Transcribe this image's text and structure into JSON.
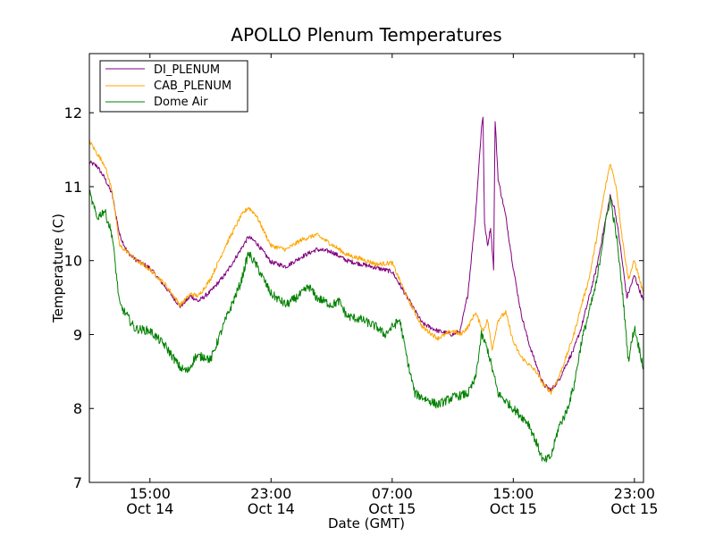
{
  "chart_data": {
    "type": "line",
    "title": "APOLLO Plenum Temperatures",
    "xlabel": "Date (GMT)",
    "ylabel": "Temperature (C)",
    "x_unit": "hours since Oct 14 00:00 GMT",
    "xlim": [
      11.0,
      47.6
    ],
    "ylim": [
      7,
      12.8
    ],
    "grid": false,
    "legend_position": "top-left",
    "x_ticks": [
      {
        "value": 15,
        "line1": "15:00",
        "line2": "Oct 14"
      },
      {
        "value": 23,
        "line1": "23:00",
        "line2": "Oct 14"
      },
      {
        "value": 31,
        "line1": "07:00",
        "line2": "Oct 15"
      },
      {
        "value": 39,
        "line1": "15:00",
        "line2": "Oct 15"
      },
      {
        "value": 47,
        "line1": "23:00",
        "line2": "Oct 15"
      }
    ],
    "y_ticks": [
      {
        "value": 7,
        "label": "7"
      },
      {
        "value": 8,
        "label": "8"
      },
      {
        "value": 9,
        "label": "9"
      },
      {
        "value": 10,
        "label": "10"
      },
      {
        "value": 11,
        "label": "11"
      },
      {
        "value": 12,
        "label": "12"
      }
    ],
    "series": [
      {
        "name": "DI_PLENUM",
        "color": "#800080",
        "noise": 0.03,
        "points": [
          [
            11.0,
            11.33
          ],
          [
            11.5,
            11.28
          ],
          [
            12.0,
            11.12
          ],
          [
            12.5,
            10.9
          ],
          [
            13.0,
            10.35
          ],
          [
            13.5,
            10.12
          ],
          [
            14.0,
            10.02
          ],
          [
            15.0,
            9.9
          ],
          [
            16.0,
            9.65
          ],
          [
            17.0,
            9.38
          ],
          [
            17.7,
            9.52
          ],
          [
            18.2,
            9.45
          ],
          [
            19.0,
            9.58
          ],
          [
            20.0,
            9.82
          ],
          [
            21.0,
            10.15
          ],
          [
            21.5,
            10.32
          ],
          [
            22.0,
            10.25
          ],
          [
            23.0,
            9.98
          ],
          [
            24.0,
            9.92
          ],
          [
            25.0,
            10.05
          ],
          [
            26.0,
            10.15
          ],
          [
            27.0,
            10.12
          ],
          [
            28.0,
            10.0
          ],
          [
            29.0,
            9.95
          ],
          [
            30.0,
            9.9
          ],
          [
            31.0,
            9.85
          ],
          [
            32.0,
            9.5
          ],
          [
            33.0,
            9.15
          ],
          [
            34.0,
            9.05
          ],
          [
            35.0,
            9.0
          ],
          [
            35.5,
            9.05
          ],
          [
            36.0,
            9.55
          ],
          [
            36.5,
            10.6
          ],
          [
            36.9,
            11.8
          ],
          [
            37.0,
            11.95
          ],
          [
            37.1,
            10.5
          ],
          [
            37.3,
            10.2
          ],
          [
            37.5,
            10.45
          ],
          [
            37.7,
            9.9
          ],
          [
            37.8,
            11.9
          ],
          [
            38.0,
            11.1
          ],
          [
            38.5,
            10.6
          ],
          [
            39.0,
            9.9
          ],
          [
            39.5,
            9.3
          ],
          [
            40.0,
            8.9
          ],
          [
            40.5,
            8.6
          ],
          [
            41.0,
            8.32
          ],
          [
            41.5,
            8.25
          ],
          [
            42.0,
            8.38
          ],
          [
            42.5,
            8.6
          ],
          [
            43.0,
            8.8
          ],
          [
            43.5,
            9.1
          ],
          [
            44.0,
            9.5
          ],
          [
            44.5,
            9.9
          ],
          [
            45.0,
            10.45
          ],
          [
            45.4,
            10.87
          ],
          [
            45.7,
            10.7
          ],
          [
            46.0,
            10.3
          ],
          [
            46.5,
            9.5
          ],
          [
            47.0,
            9.8
          ],
          [
            47.6,
            9.45
          ]
        ]
      },
      {
        "name": "CAB_PLENUM",
        "color": "#ffa500",
        "noise": 0.03,
        "points": [
          [
            11.0,
            11.62
          ],
          [
            11.5,
            11.45
          ],
          [
            12.0,
            11.3
          ],
          [
            12.5,
            10.95
          ],
          [
            13.0,
            10.2
          ],
          [
            13.5,
            10.12
          ],
          [
            14.0,
            10.02
          ],
          [
            15.0,
            9.88
          ],
          [
            16.0,
            9.68
          ],
          [
            17.0,
            9.4
          ],
          [
            17.7,
            9.55
          ],
          [
            18.2,
            9.52
          ],
          [
            19.0,
            9.75
          ],
          [
            20.0,
            10.2
          ],
          [
            21.0,
            10.6
          ],
          [
            21.5,
            10.72
          ],
          [
            22.0,
            10.62
          ],
          [
            23.0,
            10.2
          ],
          [
            24.0,
            10.15
          ],
          [
            25.0,
            10.28
          ],
          [
            26.0,
            10.35
          ],
          [
            27.0,
            10.22
          ],
          [
            28.0,
            10.08
          ],
          [
            29.0,
            10.02
          ],
          [
            30.0,
            9.95
          ],
          [
            31.0,
            9.97
          ],
          [
            32.0,
            9.5
          ],
          [
            33.0,
            9.1
          ],
          [
            34.0,
            8.95
          ],
          [
            35.0,
            9.05
          ],
          [
            35.5,
            9.0
          ],
          [
            36.0,
            9.1
          ],
          [
            36.5,
            9.3
          ],
          [
            37.0,
            9.05
          ],
          [
            37.3,
            9.2
          ],
          [
            37.6,
            8.8
          ],
          [
            38.0,
            9.2
          ],
          [
            38.5,
            9.3
          ],
          [
            39.0,
            8.9
          ],
          [
            39.5,
            8.7
          ],
          [
            40.0,
            8.6
          ],
          [
            40.5,
            8.5
          ],
          [
            41.0,
            8.32
          ],
          [
            41.5,
            8.22
          ],
          [
            42.0,
            8.42
          ],
          [
            42.5,
            8.7
          ],
          [
            43.0,
            9.0
          ],
          [
            43.5,
            9.4
          ],
          [
            44.0,
            9.75
          ],
          [
            44.5,
            10.3
          ],
          [
            45.0,
            10.9
          ],
          [
            45.4,
            11.32
          ],
          [
            45.8,
            11.0
          ],
          [
            46.2,
            10.3
          ],
          [
            46.6,
            9.75
          ],
          [
            47.0,
            10.0
          ],
          [
            47.6,
            9.55
          ]
        ]
      },
      {
        "name": "Dome Air",
        "color": "#008000",
        "noise": 0.06,
        "points": [
          [
            11.0,
            10.92
          ],
          [
            11.5,
            10.58
          ],
          [
            12.0,
            10.68
          ],
          [
            12.5,
            10.35
          ],
          [
            13.0,
            9.4
          ],
          [
            13.5,
            9.25
          ],
          [
            14.0,
            9.08
          ],
          [
            15.0,
            9.05
          ],
          [
            16.0,
            8.85
          ],
          [
            17.0,
            8.55
          ],
          [
            17.5,
            8.5
          ],
          [
            18.0,
            8.7
          ],
          [
            18.7,
            8.7
          ],
          [
            19.0,
            8.65
          ],
          [
            20.0,
            9.2
          ],
          [
            21.0,
            9.7
          ],
          [
            21.5,
            10.1
          ],
          [
            22.0,
            9.95
          ],
          [
            23.0,
            9.55
          ],
          [
            24.0,
            9.4
          ],
          [
            25.0,
            9.55
          ],
          [
            25.5,
            9.65
          ],
          [
            26.0,
            9.5
          ],
          [
            27.0,
            9.4
          ],
          [
            27.5,
            9.45
          ],
          [
            28.0,
            9.25
          ],
          [
            29.0,
            9.2
          ],
          [
            30.0,
            9.1
          ],
          [
            30.5,
            9.0
          ],
          [
            31.0,
            9.1
          ],
          [
            31.5,
            9.2
          ],
          [
            32.0,
            8.65
          ],
          [
            32.5,
            8.2
          ],
          [
            33.0,
            8.15
          ],
          [
            34.0,
            8.05
          ],
          [
            35.0,
            8.15
          ],
          [
            36.0,
            8.2
          ],
          [
            36.5,
            8.4
          ],
          [
            36.9,
            9.0
          ],
          [
            37.3,
            8.8
          ],
          [
            38.0,
            8.2
          ],
          [
            39.0,
            8.0
          ],
          [
            40.0,
            7.8
          ],
          [
            40.5,
            7.55
          ],
          [
            41.0,
            7.28
          ],
          [
            41.5,
            7.35
          ],
          [
            42.0,
            7.75
          ],
          [
            42.5,
            7.95
          ],
          [
            43.0,
            8.3
          ],
          [
            43.5,
            8.9
          ],
          [
            44.0,
            9.3
          ],
          [
            44.5,
            9.7
          ],
          [
            45.0,
            10.4
          ],
          [
            45.4,
            10.85
          ],
          [
            45.8,
            10.35
          ],
          [
            46.2,
            9.6
          ],
          [
            46.6,
            8.65
          ],
          [
            47.0,
            9.1
          ],
          [
            47.6,
            8.55
          ]
        ]
      }
    ]
  }
}
